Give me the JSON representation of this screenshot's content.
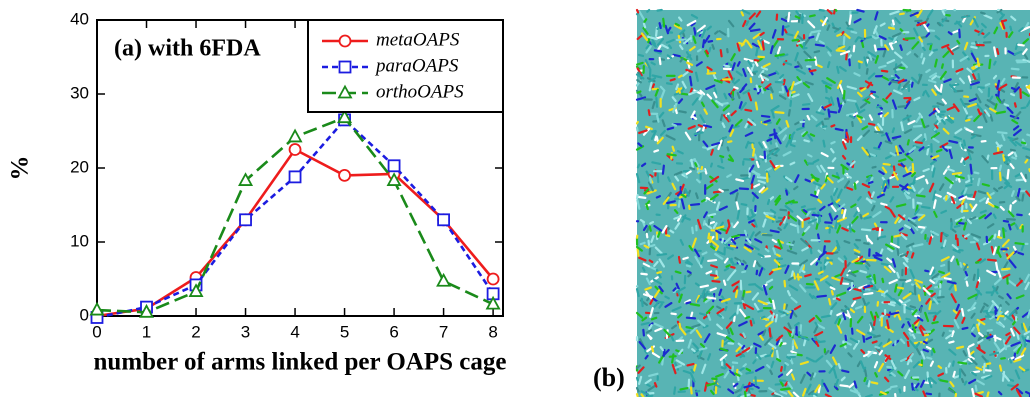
{
  "chart_data": {
    "type": "line",
    "annotation": "(a) with 6FDA",
    "panel_label": "(b)",
    "x_label": "number of arms linked per OAPS cage",
    "y_label": "%",
    "x": [
      0,
      1,
      2,
      3,
      4,
      5,
      6,
      7,
      8
    ],
    "series": [
      {
        "name": "metaOAPS",
        "color": "#ee1c1c",
        "marker": "circle",
        "dash": "solid",
        "values": [
          0,
          1,
          5.2,
          13,
          22.5,
          19,
          19.2,
          13,
          5
        ]
      },
      {
        "name": "paraOAPS",
        "color": "#1c1ce0",
        "marker": "square",
        "dash": "short",
        "values": [
          -0.2,
          1.2,
          4.2,
          13,
          18.8,
          26.5,
          20.3,
          13,
          3
        ]
      },
      {
        "name": "orthoOAPS",
        "color": "#1a8a1a",
        "marker": "triangle",
        "dash": "long",
        "values": [
          0.8,
          0.5,
          3.3,
          18.3,
          24.2,
          26.8,
          18.3,
          4.7,
          1.6
        ]
      }
    ],
    "xlim": [
      0,
      8.2
    ],
    "ylim": [
      0,
      40
    ],
    "xticks": [
      0,
      1,
      2,
      3,
      4,
      5,
      6,
      7,
      8
    ],
    "yticks": [
      0,
      10,
      20,
      30,
      40
    ],
    "legend": "upper right"
  }
}
